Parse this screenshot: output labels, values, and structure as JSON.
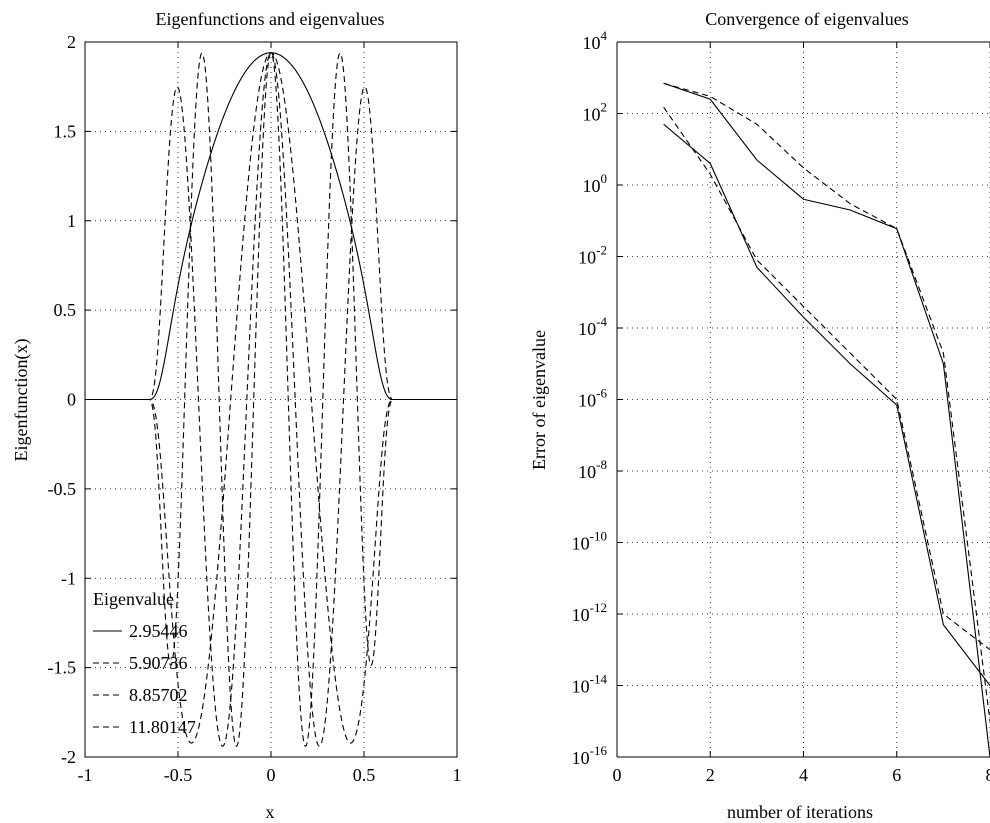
{
  "chart_data": [
    {
      "type": "line",
      "title": "Eigenfunctions and eigenvalues",
      "xlabel": "x",
      "ylabel": "Eigenfunction(x)",
      "xlim": [
        -1,
        1
      ],
      "ylim": [
        -2,
        2
      ],
      "xticks": [
        -1,
        -0.5,
        0,
        0.5,
        1
      ],
      "xtick_labels": [
        "-1",
        "-0.5",
        "0",
        "0.5",
        "1"
      ],
      "yticks": [
        -2,
        -1.5,
        -1,
        -0.5,
        0,
        0.5,
        1,
        1.5,
        2
      ],
      "ytick_labels": [
        "-2",
        "-1.5",
        "-1",
        "-0.5",
        "0",
        "0.5",
        "1",
        "1.5",
        "2"
      ],
      "grid": true,
      "legend": {
        "title": "Eigenvalue",
        "placement": "bottom-left",
        "entries": [
          "2.95446",
          "5.90736",
          "8.85702",
          "11.80147"
        ]
      },
      "series": [
        {
          "name": "2.95446",
          "style": "solid",
          "modes": 1,
          "amplitude": 1.94,
          "support": 0.65
        },
        {
          "name": "5.90736",
          "style": "dashed",
          "modes": 3,
          "amplitude": 1.94,
          "support": 0.65
        },
        {
          "name": "8.85702",
          "style": "dashed",
          "modes": 5,
          "amplitude": 1.94,
          "support": 0.65
        },
        {
          "name": "11.80147",
          "style": "dashed",
          "modes": 7,
          "amplitude": 1.94,
          "support": 0.65
        }
      ]
    },
    {
      "type": "line",
      "title": "Convergence of eigenvalues",
      "xlabel": "number of iterations",
      "ylabel": "Error of eigenvalue",
      "yscale": "log",
      "xlim": [
        0,
        8
      ],
      "ylim": [
        1e-16,
        10000.0
      ],
      "xticks": [
        0,
        2,
        4,
        6,
        8
      ],
      "xtick_labels": [
        "0",
        "2",
        "4",
        "6",
        "8"
      ],
      "yticks": [
        -16,
        -14,
        -12,
        -10,
        -8,
        -6,
        -4,
        -2,
        0,
        2,
        4
      ],
      "ytick_labels": [
        {
          "base": "10",
          "exp": "-16"
        },
        {
          "base": "10",
          "exp": "-14"
        },
        {
          "base": "10",
          "exp": "-12"
        },
        {
          "base": "10",
          "exp": "-10"
        },
        {
          "base": "10",
          "exp": "-8"
        },
        {
          "base": "10",
          "exp": "-6"
        },
        {
          "base": "10",
          "exp": "-4"
        },
        {
          "base": "10",
          "exp": "-2"
        },
        {
          "base": "10",
          "exp": "0"
        },
        {
          "base": "10",
          "exp": "2"
        },
        {
          "base": "10",
          "exp": "4"
        }
      ],
      "grid": true,
      "series": [
        {
          "style": "solid",
          "x": [
            1,
            2,
            3,
            4,
            5,
            6,
            7,
            8
          ],
          "y": [
            50,
            4,
            0.005,
            0.0002,
            1e-05,
            7e-07,
            5e-13,
            1e-14
          ]
        },
        {
          "style": "dashed",
          "x": [
            1,
            2,
            3,
            4,
            5,
            6,
            7,
            8
          ],
          "y": [
            150,
            2,
            0.008,
            0.0004,
            2e-05,
            1e-06,
            1e-12,
            1e-13
          ]
        },
        {
          "style": "solid",
          "x": [
            1,
            2,
            3,
            4,
            5,
            6,
            7,
            8
          ],
          "y": [
            700,
            250,
            5,
            0.4,
            0.2,
            0.06,
            1e-05,
            1e-16
          ]
        },
        {
          "style": "dashed",
          "x": [
            1,
            2,
            3,
            4,
            5,
            6,
            7,
            8
          ],
          "y": [
            700,
            300,
            50,
            3,
            0.3,
            0.06,
            2e-05,
            1e-15
          ]
        }
      ]
    }
  ]
}
